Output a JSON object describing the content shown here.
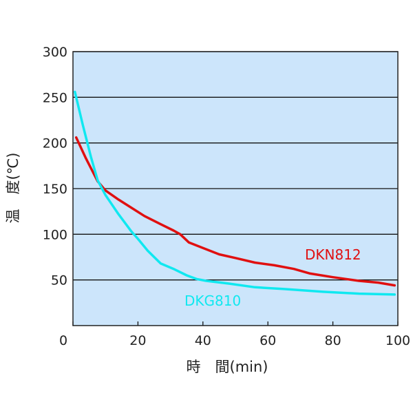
{
  "chart_data": {
    "type": "line",
    "title": "",
    "xlabel": "時　間(min)",
    "ylabel": "温　度(℃)",
    "xlim": [
      0,
      100
    ],
    "ylim": [
      0,
      300
    ],
    "xticks": [
      0,
      20,
      40,
      60,
      80,
      100
    ],
    "yticks": [
      50,
      100,
      150,
      200,
      250,
      300
    ],
    "grid": "horizontal",
    "background": "#cce5fb",
    "series": [
      {
        "name": "DKN812",
        "color": "#e01010",
        "x": [
          1,
          4,
          7.6,
          10,
          14,
          18,
          22,
          27,
          31,
          33,
          35.7,
          40,
          45,
          50,
          56,
          62,
          68,
          73,
          80,
          88,
          94,
          99
        ],
        "y": [
          206,
          183,
          158,
          148,
          138,
          129,
          120,
          111,
          104,
          100,
          91,
          85,
          78,
          74,
          69,
          66,
          62,
          57,
          53,
          49,
          47,
          44
        ]
      },
      {
        "name": "DKG810",
        "color": "#10e8f0",
        "x": [
          0.6,
          3,
          5.5,
          7.6,
          10,
          14,
          18,
          20,
          23,
          27,
          31,
          35,
          38,
          41,
          48,
          56,
          65,
          77,
          88,
          99
        ],
        "y": [
          256,
          220,
          185,
          159,
          143,
          122,
          103,
          95,
          82,
          68,
          62,
          55,
          51,
          49,
          46,
          42,
          40,
          37,
          35,
          34
        ]
      }
    ]
  }
}
